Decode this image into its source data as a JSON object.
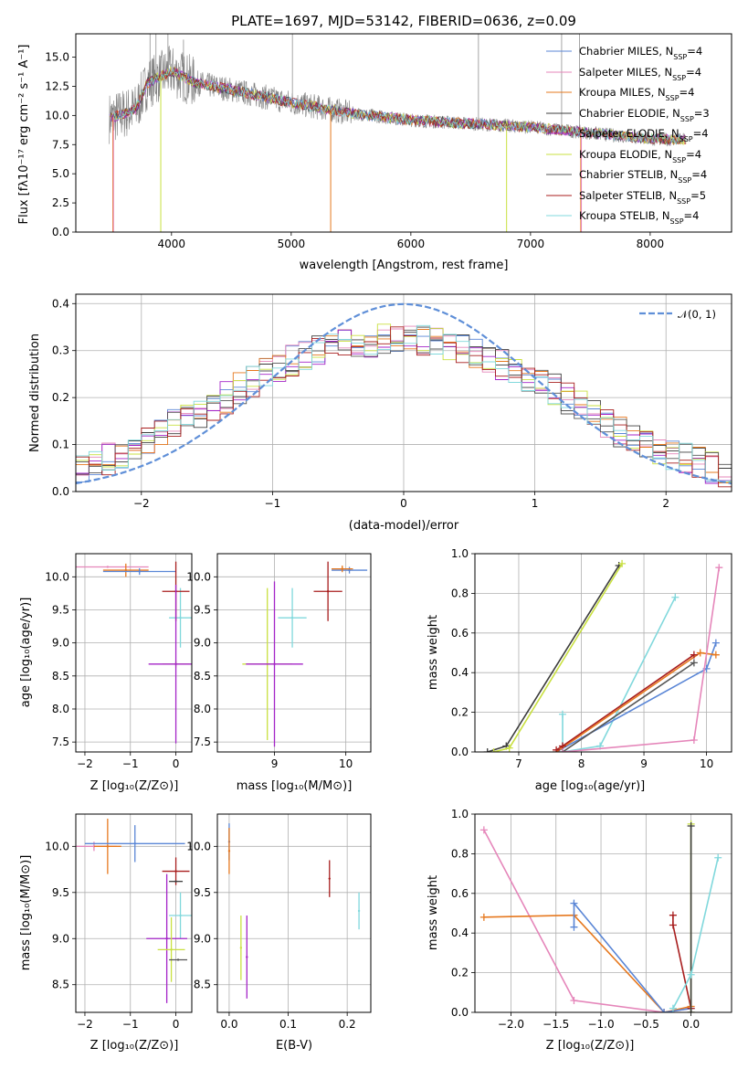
{
  "figure": {
    "title": "PLATE=1697, MJD=53142, FIBERID=0636, z=0.09"
  },
  "colors": {
    "chabrier_miles": "#5a86d6",
    "salpeter_miles": "#e586ba",
    "kroupa_miles": "#e6781e",
    "chabrier_elodie": "#3c3c3c",
    "salpeter_elodie": "#a424c8",
    "kroupa_elodie": "#c9e040",
    "chabrier_stelib": "#555555",
    "salpeter_stelib": "#a81e1e",
    "kroupa_stelib": "#80d8dc",
    "data": "#808080",
    "gaussian": "#5f8fd8",
    "grid": "#b0b0b0"
  },
  "chart_data": [
    {
      "id": "spectrum",
      "type": "line",
      "xlabel": "wavelength [Angstrom, rest frame]",
      "ylabel": "Flux [fλ10⁻¹⁷ erg cm⁻² s⁻¹ A⁻¹]",
      "xlim": [
        3200,
        8680
      ],
      "ylim": [
        0,
        17
      ],
      "xticks": [
        4000,
        5000,
        6000,
        7000,
        8000
      ],
      "yticks": [
        0.0,
        2.5,
        5.0,
        7.5,
        10.0,
        12.5,
        15.0
      ],
      "continuum": {
        "x": [
          3500,
          3700,
          3800,
          3900,
          4000,
          4200,
          4500,
          5000,
          5500,
          6000,
          6500,
          7000,
          7500,
          8000,
          8300
        ],
        "y": [
          9.8,
          10.5,
          12.8,
          13.3,
          13.8,
          12.8,
          12.2,
          11.1,
          10.2,
          9.6,
          9.3,
          9.0,
          8.5,
          8.0,
          7.9
        ]
      },
      "legend": [
        {
          "label": "Chabrier MILES, N",
          "sub": "SSP",
          "value": "=4",
          "color": "#5a86d6"
        },
        {
          "label": "Salpeter MILES, N",
          "sub": "SSP",
          "value": "=4",
          "color": "#e586ba"
        },
        {
          "label": "Kroupa MILES, N",
          "sub": "SSP",
          "value": "=4",
          "color": "#e6781e"
        },
        {
          "label": "Chabrier ELODIE, N",
          "sub": "SSP",
          "value": "=3",
          "color": "#3c3c3c"
        },
        {
          "label": "Salpeter ELODIE, N",
          "sub": "SSP",
          "value": "=4",
          "color": "#a424c8"
        },
        {
          "label": "Kroupa ELODIE, N",
          "sub": "SSP",
          "value": "=4",
          "color": "#c9e040"
        },
        {
          "label": "Chabrier STELIB, N",
          "sub": "SSP",
          "value": "=4",
          "color": "#555555"
        },
        {
          "label": "Salpeter STELIB, N",
          "sub": "SSP",
          "value": "=5",
          "color": "#a81e1e"
        },
        {
          "label": "Kroupa STELIB, N",
          "sub": "SSP",
          "value": "=4",
          "color": "#80d8dc"
        }
      ]
    },
    {
      "id": "residuals",
      "type": "line",
      "xlabel": "(data-model)/error",
      "ylabel": "Normed distribution",
      "xlim": [
        -2.5,
        2.5
      ],
      "ylim": [
        0,
        0.42
      ],
      "xticks": [
        -2,
        -1,
        0,
        1,
        2
      ],
      "yticks": [
        0.0,
        0.1,
        0.2,
        0.3,
        0.4
      ],
      "legend": [
        {
          "label": "𝒩(0, 1)",
          "color": "#5f8fd8"
        }
      ],
      "histogram_envelope": {
        "x": [
          -2.5,
          -2.25,
          -2.0,
          -1.75,
          -1.5,
          -1.25,
          -1.0,
          -0.75,
          -0.5,
          -0.25,
          0.0,
          0.25,
          0.5,
          0.75,
          1.0,
          1.25,
          1.5,
          1.75,
          2.0,
          2.25,
          2.5
        ],
        "y": [
          0.05,
          0.07,
          0.1,
          0.14,
          0.17,
          0.22,
          0.26,
          0.29,
          0.31,
          0.32,
          0.33,
          0.32,
          0.3,
          0.27,
          0.24,
          0.2,
          0.15,
          0.11,
          0.08,
          0.06,
          0.04
        ]
      }
    },
    {
      "id": "age_vs_Z",
      "type": "scatter",
      "xlabel": "Z [log₁₀(Z/Z⊙)]",
      "ylabel": "age  [log₁₀(age/yr)]",
      "xlim": [
        -2.2,
        0.35
      ],
      "ylim": [
        7.35,
        10.35
      ],
      "xticks": [
        -2,
        -1,
        0
      ],
      "yticks": [
        7.5,
        8.0,
        8.5,
        9.0,
        9.5,
        10.0
      ],
      "points": [
        {
          "series": "salpeter_miles",
          "x": -1.5,
          "y": 10.15,
          "xerr": 0.9,
          "yerr": 0.0
        },
        {
          "series": "kroupa_miles",
          "x": -1.1,
          "y": 10.1,
          "xerr": 0.5,
          "yerr": 0.1
        },
        {
          "series": "chabrier_miles",
          "x": -0.8,
          "y": 10.08,
          "xerr": 0.8,
          "yerr": 0.05
        },
        {
          "series": "kroupa_stelib",
          "x": 0.1,
          "y": 9.38,
          "xerr": 0.25,
          "yerr": 0.45
        },
        {
          "series": "salpeter_stelib",
          "x": 0.0,
          "y": 9.78,
          "xerr": 0.3,
          "yerr": 0.45
        },
        {
          "series": "kroupa_elodie",
          "x": 0.0,
          "y": 8.68,
          "xerr": 0.3,
          "yerr": 0.05
        },
        {
          "series": "salpeter_elodie",
          "x": 0.0,
          "y": 8.68,
          "xerr": 0.6,
          "yerr": 1.2
        }
      ]
    },
    {
      "id": "age_vs_mass",
      "type": "scatter",
      "xlabel": "mass [log₁₀(M/M⊙)]",
      "ylabel": "",
      "xlim": [
        8.2,
        10.35
      ],
      "ylim": [
        7.35,
        10.35
      ],
      "xticks": [
        9,
        10
      ],
      "yticks": [
        7.5,
        8.0,
        8.5,
        9.0,
        9.5,
        10.0
      ],
      "points": [
        {
          "series": "chabrier_miles",
          "x": 10.05,
          "y": 10.1,
          "xerr": 0.25,
          "yerr": 0.05
        },
        {
          "series": "kroupa_miles",
          "x": 9.95,
          "y": 10.12,
          "xerr": 0.15,
          "yerr": 0.05
        },
        {
          "series": "salpeter_stelib",
          "x": 9.75,
          "y": 9.78,
          "xerr": 0.2,
          "yerr": 0.45
        },
        {
          "series": "kroupa_stelib",
          "x": 9.25,
          "y": 9.38,
          "xerr": 0.2,
          "yerr": 0.45
        },
        {
          "series": "kroupa_elodie",
          "x": 8.9,
          "y": 8.68,
          "xerr": 0.35,
          "yerr": 1.15
        },
        {
          "series": "salpeter_elodie",
          "x": 9.0,
          "y": 8.68,
          "xerr": 0.4,
          "yerr": 1.25
        }
      ]
    },
    {
      "id": "massweight_vs_age",
      "type": "line",
      "xlabel": "age  [log₁₀(age/yr)]",
      "ylabel": "mass weight",
      "xlim": [
        6.3,
        10.4
      ],
      "ylim": [
        0,
        1
      ],
      "xticks": [
        7,
        8,
        9,
        10
      ],
      "yticks": [
        0.0,
        0.2,
        0.4,
        0.6,
        0.8,
        1.0
      ],
      "series": [
        {
          "key": "chabrier_elodie",
          "x": [
            6.5,
            6.8,
            8.6
          ],
          "y": [
            0.0,
            0.03,
            0.94
          ]
        },
        {
          "key": "kroupa_elodie",
          "x": [
            6.6,
            6.85,
            8.65
          ],
          "y": [
            0.0,
            0.02,
            0.95
          ]
        },
        {
          "key": "kroupa_stelib",
          "x": [
            7.7,
            7.7,
            8.3,
            9.5
          ],
          "y": [
            0.19,
            0.0,
            0.03,
            0.78
          ]
        },
        {
          "key": "chabrier_miles",
          "x": [
            7.6,
            10.0,
            10.15
          ],
          "y": [
            0.0,
            0.42,
            0.55
          ]
        },
        {
          "key": "kroupa_miles",
          "x": [
            7.6,
            9.9,
            10.15
          ],
          "y": [
            0.0,
            0.5,
            0.49
          ]
        },
        {
          "key": "chabrier_stelib",
          "x": [
            7.7,
            9.8
          ],
          "y": [
            0.0,
            0.45
          ]
        },
        {
          "key": "salpeter_stelib",
          "x": [
            7.6,
            7.7,
            9.8
          ],
          "y": [
            0.01,
            0.03,
            0.49
          ]
        },
        {
          "key": "salpeter_miles",
          "x": [
            7.7,
            9.8,
            10.2
          ],
          "y": [
            0.0,
            0.06,
            0.93
          ]
        }
      ]
    },
    {
      "id": "mass_vs_Z",
      "type": "scatter",
      "xlabel": "Z [log₁₀(Z/Z⊙)]",
      "ylabel": "mass [log₁₀(M/M⊙)]",
      "xlim": [
        -2.2,
        0.35
      ],
      "ylim": [
        8.2,
        10.35
      ],
      "xticks": [
        -2,
        -1,
        0
      ],
      "yticks": [
        8.5,
        9.0,
        9.5,
        10.0
      ],
      "points": [
        {
          "series": "salpeter_miles",
          "x": -1.8,
          "y": 10.0,
          "xerr": 0.5,
          "yerr": 0.05
        },
        {
          "series": "kroupa_miles",
          "x": -1.5,
          "y": 10.0,
          "xerr": 0.3,
          "yerr": 0.3
        },
        {
          "series": "chabrier_miles",
          "x": -0.9,
          "y": 10.03,
          "xerr": 1.1,
          "yerr": 0.2
        },
        {
          "series": "salpeter_stelib",
          "x": 0.0,
          "y": 9.73,
          "xerr": 0.3,
          "yerr": 0.15
        },
        {
          "series": "chabrier_elodie",
          "x": 0.0,
          "y": 9.62,
          "xerr": 0.15,
          "yerr": 0.0
        },
        {
          "series": "kroupa_stelib",
          "x": 0.1,
          "y": 9.25,
          "xerr": 0.25,
          "yerr": 0.25
        },
        {
          "series": "salpeter_elodie",
          "x": -0.2,
          "y": 9.0,
          "xerr": 0.45,
          "yerr": 0.7
        },
        {
          "series": "kroupa_elodie",
          "x": -0.1,
          "y": 8.88,
          "xerr": 0.3,
          "yerr": 0.35
        },
        {
          "series": "chabrier_stelib",
          "x": 0.05,
          "y": 8.77,
          "xerr": 0.2,
          "yerr": 0.0
        }
      ]
    },
    {
      "id": "mass_vs_ebv",
      "type": "scatter",
      "xlabel": "E(B-V)",
      "ylabel": "",
      "xlim": [
        -0.02,
        0.24
      ],
      "ylim": [
        8.2,
        10.35
      ],
      "xticks": [
        0.0,
        0.1,
        0.2
      ],
      "yticks": [
        8.5,
        9.0,
        9.5,
        10.0
      ],
      "points": [
        {
          "series": "chabrier_miles",
          "x": 0.0,
          "y": 10.05,
          "xerr": 0.0,
          "yerr": 0.2
        },
        {
          "series": "kroupa_miles",
          "x": 0.0,
          "y": 9.95,
          "xerr": 0.0,
          "yerr": 0.25
        },
        {
          "series": "kroupa_elodie",
          "x": 0.02,
          "y": 8.9,
          "xerr": 0.0,
          "yerr": 0.35
        },
        {
          "series": "salpeter_elodie",
          "x": 0.03,
          "y": 8.8,
          "xerr": 0.0,
          "yerr": 0.45
        },
        {
          "series": "salpeter_stelib",
          "x": 0.17,
          "y": 9.65,
          "xerr": 0.0,
          "yerr": 0.2
        },
        {
          "series": "kroupa_stelib",
          "x": 0.22,
          "y": 9.3,
          "xerr": 0.0,
          "yerr": 0.2
        }
      ]
    },
    {
      "id": "massweight_vs_Z",
      "type": "line",
      "xlabel": "Z [log₁₀(Z/Z⊙)]",
      "ylabel": "mass weight",
      "xlim": [
        -2.4,
        0.45
      ],
      "ylim": [
        0,
        1
      ],
      "xticks": [
        -2.0,
        -1.5,
        -1.0,
        -0.5,
        0.0
      ],
      "yticks": [
        0.0,
        0.2,
        0.4,
        0.6,
        0.8,
        1.0
      ],
      "series": [
        {
          "key": "salpeter_miles",
          "x": [
            -2.3,
            -1.3,
            -0.3,
            0.0
          ],
          "y": [
            0.92,
            0.06,
            0.0,
            0.02
          ]
        },
        {
          "key": "kroupa_miles",
          "x": [
            -2.3,
            -1.3,
            -0.3,
            0.0
          ],
          "y": [
            0.48,
            0.49,
            0.0,
            0.03
          ]
        },
        {
          "key": "chabrier_miles",
          "x": [
            -1.3,
            -1.3,
            -0.3,
            0.0
          ],
          "y": [
            0.43,
            0.55,
            0.0,
            0.02
          ]
        },
        {
          "key": "salpeter_stelib",
          "x": [
            -0.2,
            -0.2,
            0.0
          ],
          "y": [
            0.49,
            0.44,
            0.02
          ]
        },
        {
          "key": "kroupa_elodie",
          "x": [
            0.0,
            0.0
          ],
          "y": [
            0.95,
            0.0
          ]
        },
        {
          "key": "chabrier_elodie",
          "x": [
            0.0,
            0.0
          ],
          "y": [
            0.94,
            0.0
          ]
        },
        {
          "key": "kroupa_stelib",
          "x": [
            -0.2,
            0.0,
            0.3
          ],
          "y": [
            0.02,
            0.19,
            0.78
          ]
        }
      ]
    }
  ]
}
